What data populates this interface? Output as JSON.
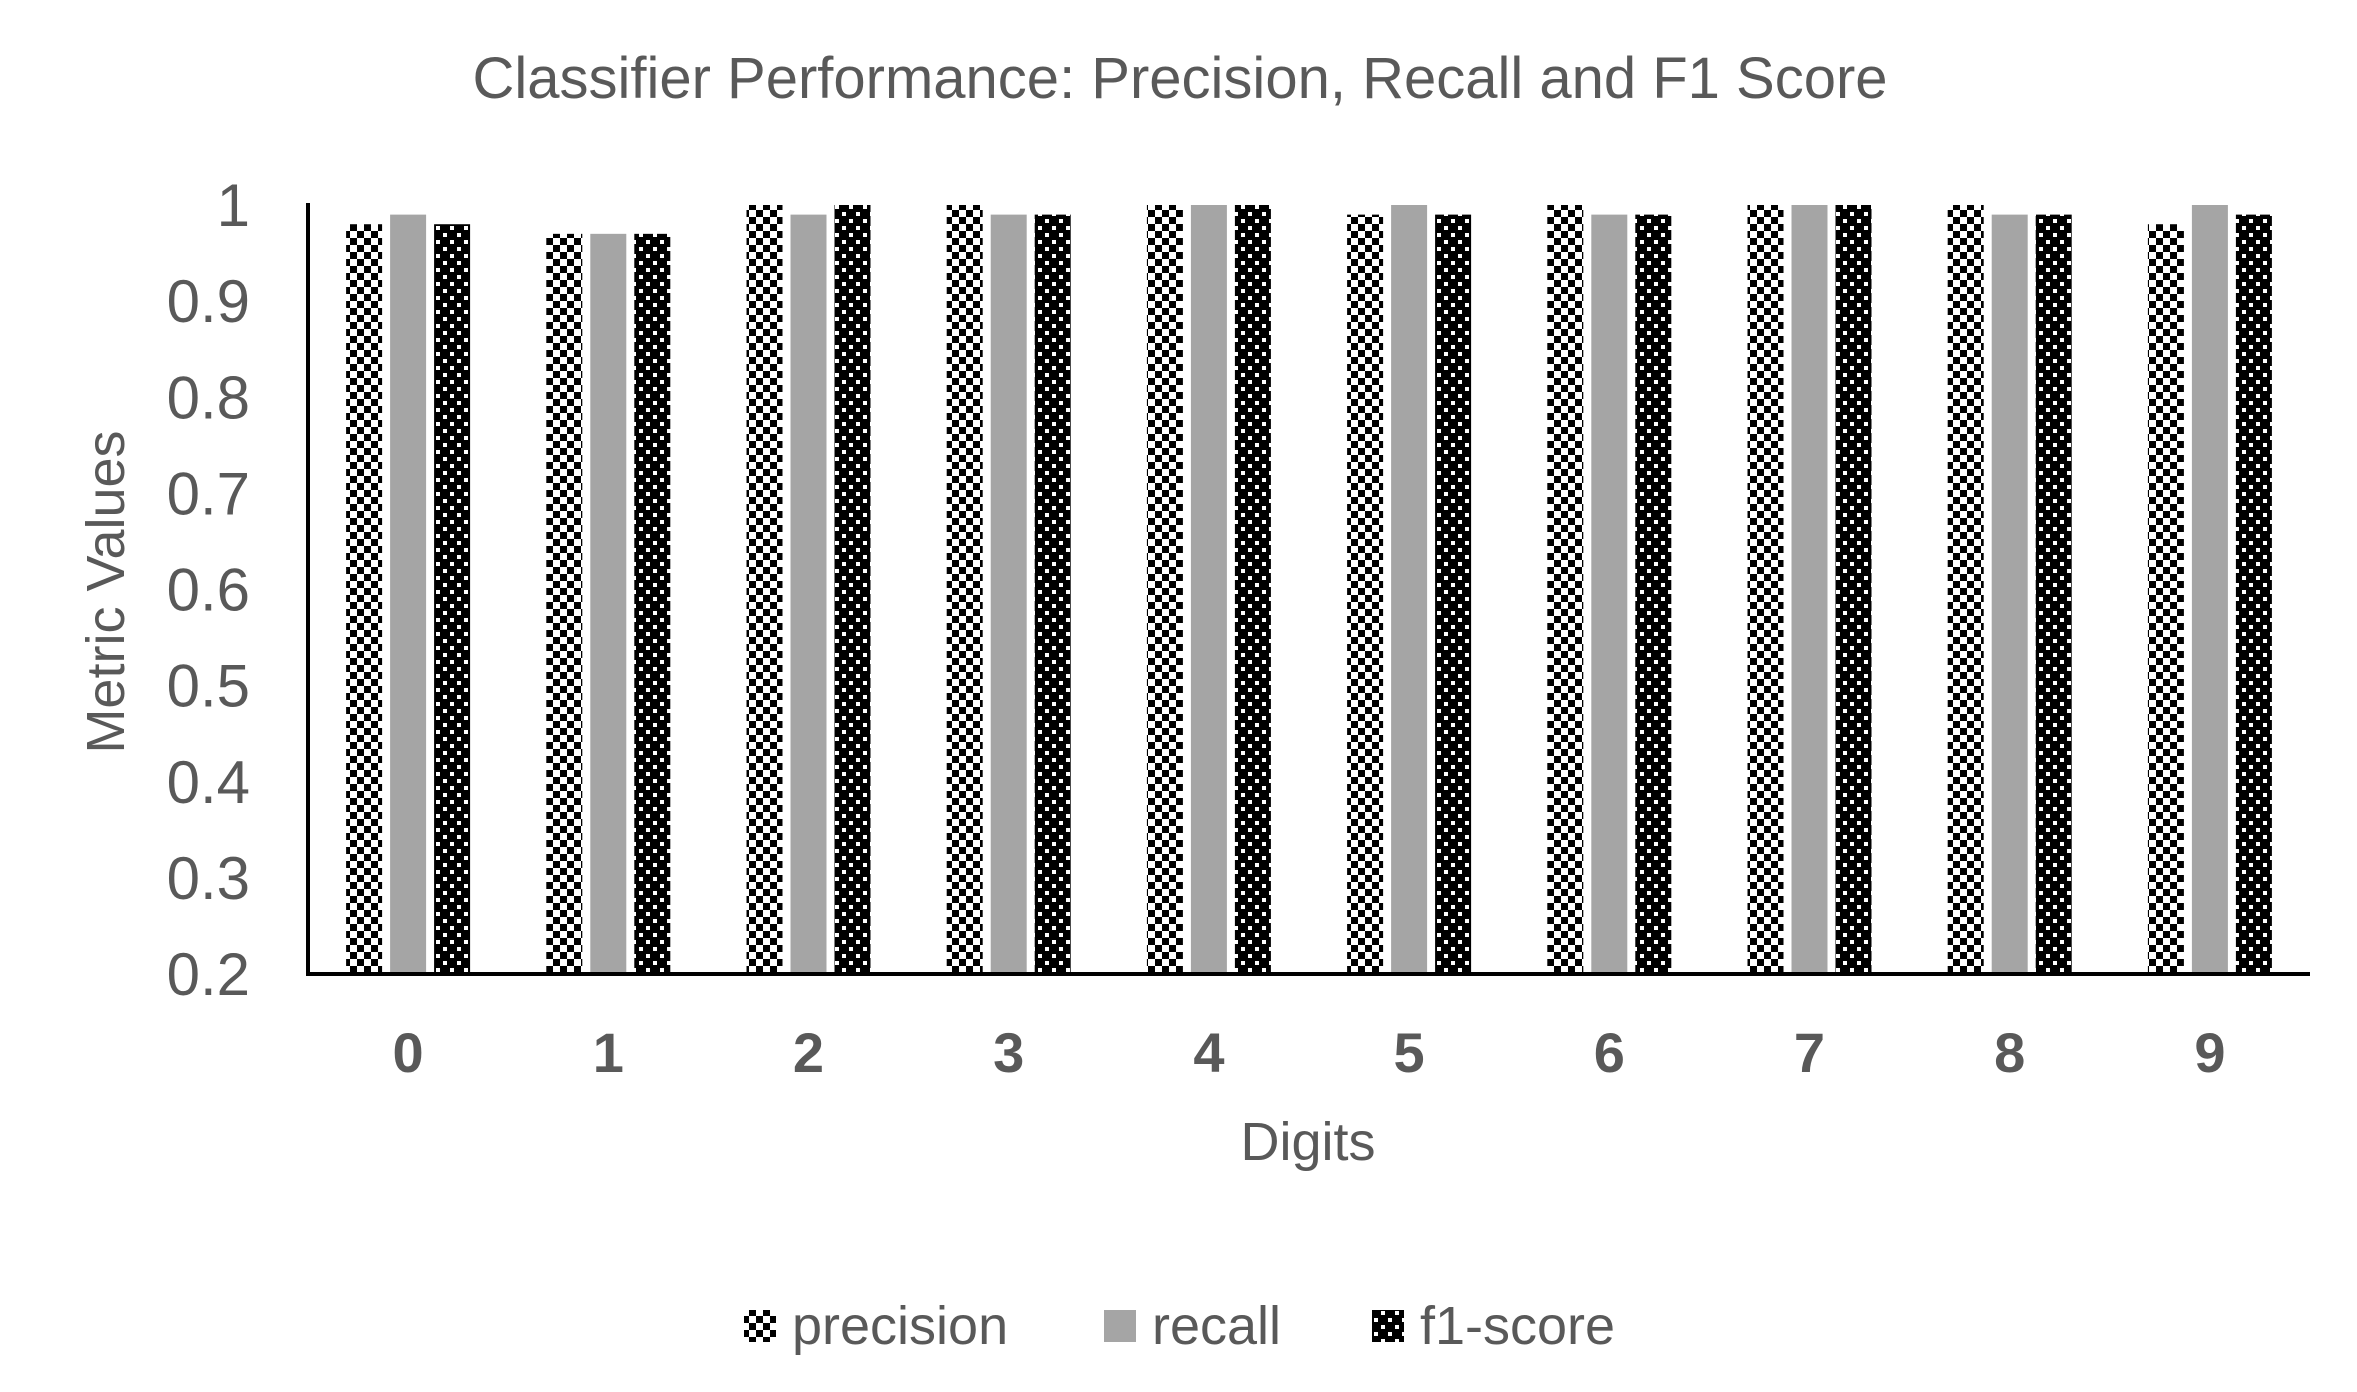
{
  "chart_data": {
    "type": "bar",
    "title": "Classifier Performance: Precision, Recall and F1 Score",
    "xlabel": "Digits",
    "ylabel": "Metric Values",
    "categories": [
      "0",
      "1",
      "2",
      "3",
      "4",
      "5",
      "6",
      "7",
      "8",
      "9"
    ],
    "ylim": [
      0.2,
      1.0
    ],
    "yticks": [
      "0.2",
      "0.3",
      "0.4",
      "0.5",
      "0.6",
      "0.7",
      "0.8",
      "0.9",
      "1"
    ],
    "grid": false,
    "legend_position": "bottom",
    "series": [
      {
        "name": "precision",
        "pattern": "checker",
        "color": "#000000",
        "values": [
          0.98,
          0.97,
          1.0,
          1.0,
          1.0,
          0.99,
          1.0,
          1.0,
          1.0,
          0.98
        ]
      },
      {
        "name": "recall",
        "pattern": "solid",
        "color": "#a5a5a5",
        "values": [
          0.99,
          0.97,
          0.99,
          0.99,
          1.0,
          1.0,
          0.99,
          1.0,
          0.99,
          1.0
        ]
      },
      {
        "name": "f1-score",
        "pattern": "dark-checker",
        "color": "#000000",
        "values": [
          0.98,
          0.97,
          1.0,
          0.99,
          1.0,
          0.99,
          0.99,
          1.0,
          0.99,
          0.99
        ]
      }
    ]
  }
}
